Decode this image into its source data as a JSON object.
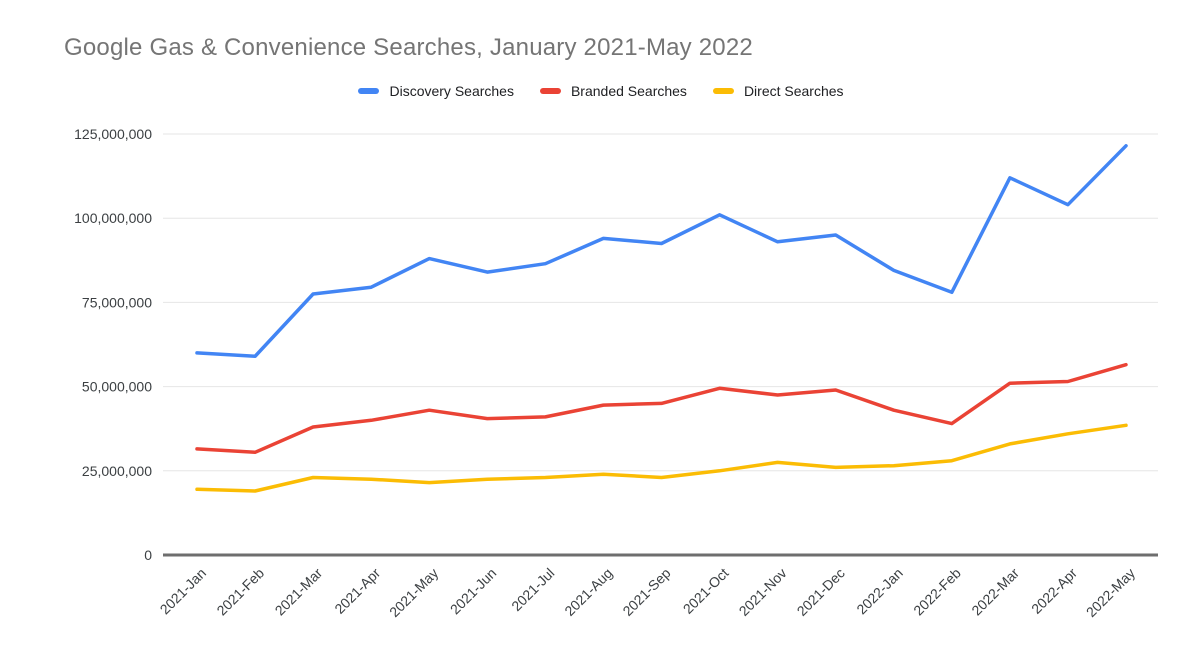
{
  "title": "Google Gas & Convenience Searches, January 2021-May 2022",
  "chart_data": {
    "type": "line",
    "title": "Google Gas & Convenience Searches, January 2021-May 2022",
    "xlabel": "",
    "ylabel": "",
    "grid": true,
    "legend_position": "top",
    "ylim": [
      0,
      125000000
    ],
    "yticks": [
      0,
      25000000,
      50000000,
      75000000,
      100000000,
      125000000
    ],
    "ytick_labels": [
      "0",
      "25,000,000",
      "50,000,000",
      "75,000,000",
      "100,000,000",
      "125,000,000"
    ],
    "categories": [
      "2021-Jan",
      "2021-Feb",
      "2021-Mar",
      "2021-Apr",
      "2021-May",
      "2021-Jun",
      "2021-Jul",
      "2021-Aug",
      "2021-Sep",
      "2021-Oct",
      "2021-Nov",
      "2021-Dec",
      "2022-Jan",
      "2022-Feb",
      "2022-Mar",
      "2022-Apr",
      "2022-May"
    ],
    "series": [
      {
        "name": "Discovery Searches",
        "color": "#4285F4",
        "values": [
          60000000,
          59000000,
          77500000,
          79500000,
          88000000,
          84000000,
          86500000,
          94000000,
          92500000,
          101000000,
          93000000,
          95000000,
          84500000,
          78000000,
          112000000,
          104000000,
          121500000
        ]
      },
      {
        "name": "Branded Searches",
        "color": "#EA4335",
        "values": [
          31500000,
          30500000,
          38000000,
          40000000,
          43000000,
          40500000,
          41000000,
          44500000,
          45000000,
          49500000,
          47500000,
          49000000,
          43000000,
          39000000,
          51000000,
          51500000,
          56500000
        ]
      },
      {
        "name": "Direct Searches",
        "color": "#FBBC04",
        "values": [
          19500000,
          19000000,
          23000000,
          22500000,
          21500000,
          22500000,
          23000000,
          24000000,
          23000000,
          25000000,
          27500000,
          26000000,
          26500000,
          28000000,
          33000000,
          36000000,
          38500000
        ]
      }
    ]
  }
}
